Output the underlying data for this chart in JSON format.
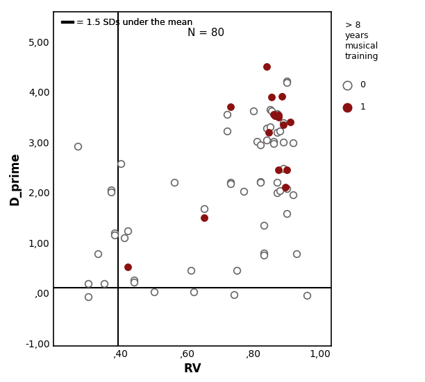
{
  "xlabel": "RV",
  "ylabel": "D_prime",
  "xlim": [
    0.195,
    1.035
  ],
  "ylim": [
    -1.05,
    5.6
  ],
  "xticks": [
    0.4,
    0.6,
    0.8,
    1.0
  ],
  "yticks": [
    -1.0,
    0.0,
    1.0,
    2.0,
    3.0,
    4.0,
    5.0
  ],
  "xtick_labels": [
    ",40",
    ",60",
    ",80",
    "1,00"
  ],
  "ytick_labels": [
    "-1,00",
    ",00",
    "1,00",
    "2,00",
    "3,00",
    "4,00",
    "5,00"
  ],
  "vline_x": 0.39,
  "hline_y": 0.1,
  "legend_title": "> 8\nyears\nmusical\ntraining",
  "N_label": "N = 80",
  "cutoff_label": "= 1.5 SDs under the mean",
  "points_open": [
    [
      0.27,
      2.92
    ],
    [
      0.3,
      0.18
    ],
    [
      0.3,
      -0.08
    ],
    [
      0.33,
      0.78
    ],
    [
      0.35,
      0.18
    ],
    [
      0.37,
      2.05
    ],
    [
      0.37,
      2.01
    ],
    [
      0.38,
      1.19
    ],
    [
      0.38,
      1.15
    ],
    [
      0.4,
      2.57
    ],
    [
      0.41,
      1.1
    ],
    [
      0.42,
      1.24
    ],
    [
      0.44,
      0.25
    ],
    [
      0.44,
      0.22
    ],
    [
      0.5,
      0.02
    ],
    [
      0.56,
      2.2
    ],
    [
      0.61,
      0.45
    ],
    [
      0.62,
      0.02
    ],
    [
      0.65,
      1.67
    ],
    [
      0.72,
      3.55
    ],
    [
      0.72,
      3.22
    ],
    [
      0.73,
      2.2
    ],
    [
      0.73,
      2.17
    ],
    [
      0.74,
      -0.04
    ],
    [
      0.75,
      0.45
    ],
    [
      0.77,
      2.02
    ],
    [
      0.8,
      3.62
    ],
    [
      0.81,
      3.02
    ],
    [
      0.82,
      2.95
    ],
    [
      0.82,
      2.22
    ],
    [
      0.82,
      2.2
    ],
    [
      0.83,
      1.35
    ],
    [
      0.83,
      0.8
    ],
    [
      0.83,
      0.75
    ],
    [
      0.84,
      3.27
    ],
    [
      0.84,
      3.04
    ],
    [
      0.85,
      3.65
    ],
    [
      0.855,
      3.62
    ],
    [
      0.85,
      3.3
    ],
    [
      0.86,
      3.01
    ],
    [
      0.86,
      2.97
    ],
    [
      0.87,
      3.57
    ],
    [
      0.87,
      3.55
    ],
    [
      0.87,
      3.2
    ],
    [
      0.87,
      2.2
    ],
    [
      0.87,
      2.0
    ],
    [
      0.88,
      3.22
    ],
    [
      0.88,
      2.03
    ],
    [
      0.89,
      3.38
    ],
    [
      0.89,
      3.0
    ],
    [
      0.89,
      2.48
    ],
    [
      0.9,
      4.21
    ],
    [
      0.9,
      4.18
    ],
    [
      0.9,
      2.07
    ],
    [
      0.9,
      1.58
    ],
    [
      0.92,
      2.98
    ],
    [
      0.92,
      1.95
    ],
    [
      0.93,
      0.78
    ],
    [
      0.96,
      -0.05
    ]
  ],
  "points_filled": [
    [
      0.42,
      0.52
    ],
    [
      0.65,
      1.5
    ],
    [
      0.73,
      3.7
    ],
    [
      0.84,
      4.5
    ],
    [
      0.845,
      3.2
    ],
    [
      0.855,
      3.9
    ],
    [
      0.86,
      3.55
    ],
    [
      0.865,
      3.52
    ],
    [
      0.875,
      3.54
    ],
    [
      0.875,
      3.5
    ],
    [
      0.875,
      2.45
    ],
    [
      0.885,
      3.91
    ],
    [
      0.89,
      3.35
    ],
    [
      0.895,
      2.1
    ],
    [
      0.9,
      2.45
    ],
    [
      0.91,
      3.4
    ]
  ],
  "open_edgecolor": "#666666",
  "filled_color": "#8B1010",
  "marker_size": 7
}
